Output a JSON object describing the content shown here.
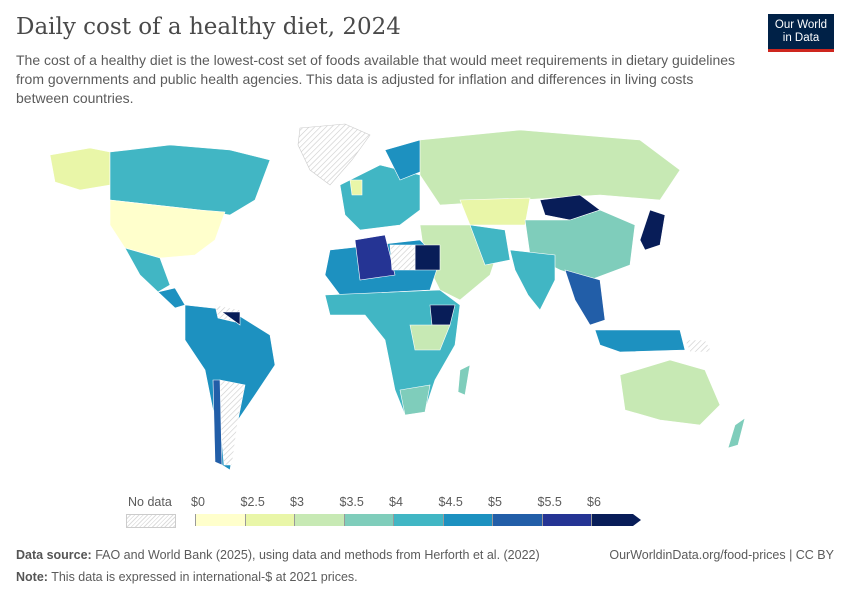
{
  "header": {
    "title": "Daily cost of a healthy diet, 2024",
    "subtitle": "The cost of a healthy diet is the lowest-cost set of foods available that would meet requirements in dietary guidelines from governments and public health agencies. This data is adjusted for inflation and differences in living costs between countries.",
    "logo_line1": "Our World",
    "logo_line2": "in Data"
  },
  "legend": {
    "no_data_label": "No data",
    "ticks": [
      "$0",
      "$2.5",
      "$3",
      "$3.5",
      "$4",
      "$4.5",
      "$5",
      "$5.5",
      "$6"
    ],
    "bins": [
      {
        "range": "$0–$2.5",
        "color": "#ffffcc"
      },
      {
        "range": "$2.5–$3",
        "color": "#e9f6a8"
      },
      {
        "range": "$3–$3.5",
        "color": "#c7e9b4"
      },
      {
        "range": "$3.5–$4",
        "color": "#7fcdbb"
      },
      {
        "range": "$4–$4.5",
        "color": "#41b6c4"
      },
      {
        "range": "$4.5–$5",
        "color": "#1d91c0"
      },
      {
        "range": "$5–$5.5",
        "color": "#225ea8"
      },
      {
        "range": "$5.5–$6",
        "color": "#253494"
      },
      {
        "range": ">$6",
        "color": "#081d58"
      }
    ],
    "no_data_color": "#eeeeee"
  },
  "footer": {
    "source_label": "Data source:",
    "source_text": " FAO and World Bank (2025), using data and methods from Herforth et al. (2022)",
    "note_label": "Note:",
    "note_text": " This data is expressed in international-$ at 2021 prices.",
    "url": "OurWorldinData.org/food-prices | CC BY"
  }
}
